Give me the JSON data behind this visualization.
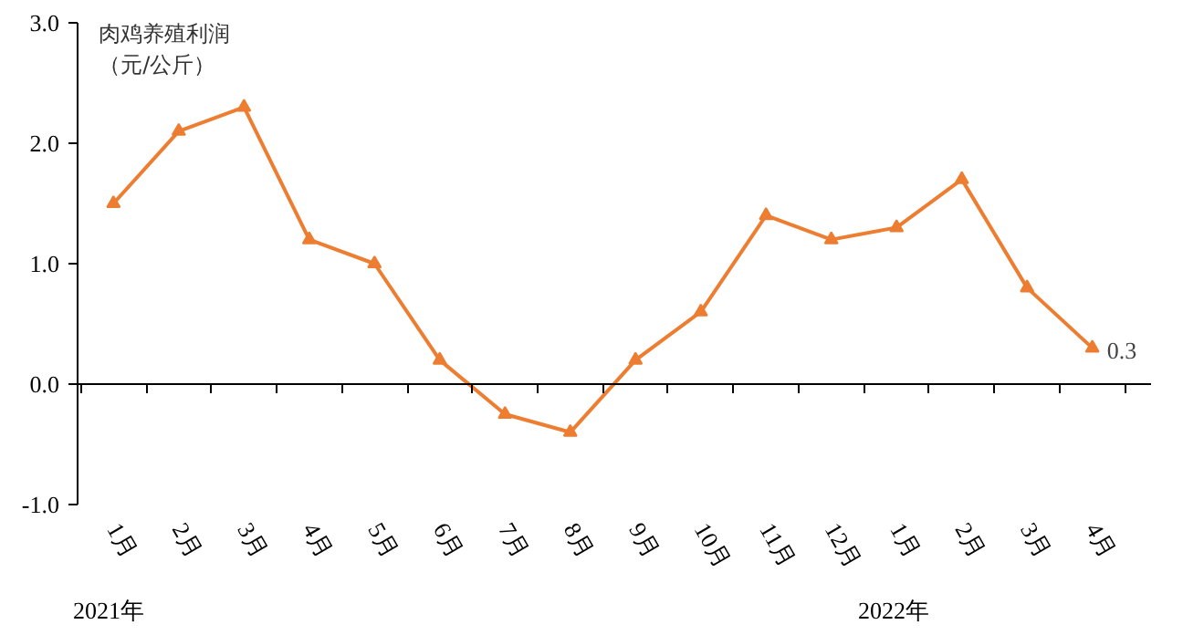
{
  "chart_data": {
    "type": "line",
    "ylabel": "肉鸡养殖利润（元/公斤）",
    "categories": [
      "1月",
      "2月",
      "3月",
      "4月",
      "5月",
      "6月",
      "7月",
      "8月",
      "9月",
      "10月",
      "11月",
      "12月",
      "1月",
      "2月",
      "3月",
      "4月"
    ],
    "series": [
      {
        "color": "#ed7d31",
        "values": [
          1.5,
          2.1,
          2.3,
          1.2,
          1.0,
          0.2,
          -0.25,
          -0.4,
          0.2,
          0.6,
          1.4,
          1.2,
          1.3,
          1.7,
          0.8,
          0.3
        ],
        "value_labels": [
          null,
          null,
          null,
          null,
          null,
          null,
          null,
          null,
          null,
          null,
          null,
          null,
          null,
          null,
          null,
          "0.3"
        ]
      }
    ],
    "ylim": [
      -1,
      3
    ],
    "yticks": [
      {
        "value": -1,
        "label": "-1.0"
      },
      {
        "value": 0,
        "label": "0.0"
      },
      {
        "value": 1,
        "label": "1.0"
      },
      {
        "value": 2,
        "label": "2.0"
      },
      {
        "value": 3,
        "label": "3.0"
      }
    ],
    "marker": "triangle",
    "line_style": "solid",
    "annotations": [
      "2021年",
      "2022年"
    ]
  }
}
